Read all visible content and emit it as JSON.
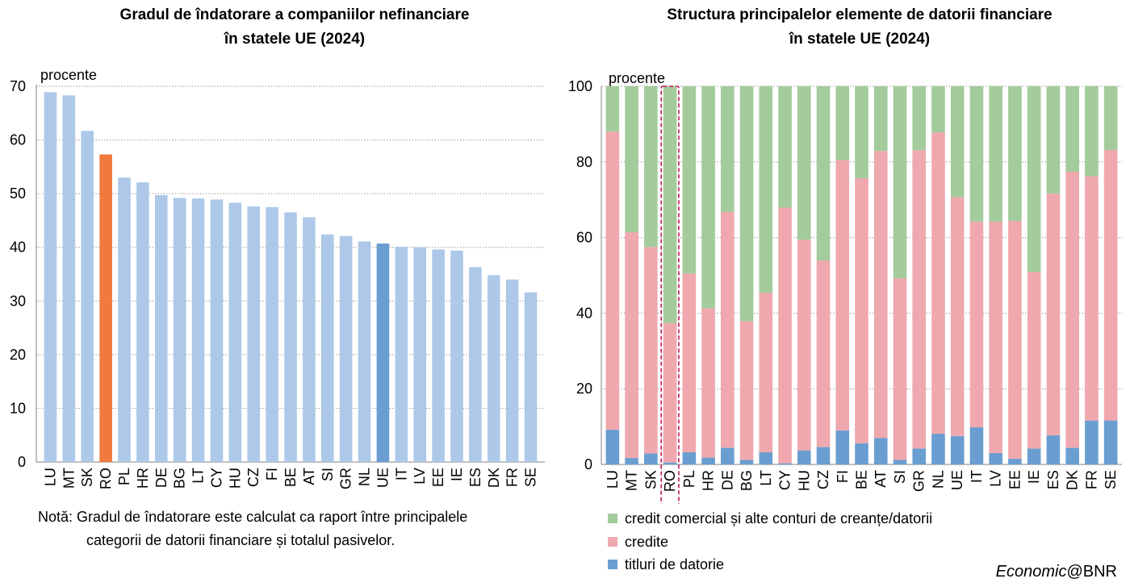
{
  "chart_data": [
    {
      "type": "bar",
      "title": "Gradul de îndatorare a companiilor nefinanciare\nîn statele UE (2024)",
      "title_lines": [
        "Gradul de îndatorare a companiilor nefinanciare",
        "în statele UE (2024)"
      ],
      "unit_label": "procente",
      "categories": [
        "LU",
        "MT",
        "SK",
        "RO",
        "PL",
        "HR",
        "DE",
        "BG",
        "LT",
        "CY",
        "HU",
        "CZ",
        "FI",
        "BE",
        "AT",
        "SI",
        "GR",
        "NL",
        "UE",
        "IT",
        "LV",
        "EE",
        "IE",
        "ES",
        "DK",
        "FR",
        "SE"
      ],
      "values": [
        68.9,
        68.3,
        61.7,
        57.3,
        53.0,
        52.1,
        49.7,
        49.2,
        49.1,
        48.9,
        48.3,
        47.6,
        47.5,
        46.5,
        45.6,
        42.4,
        42.1,
        41.1,
        40.7,
        40.1,
        40.0,
        39.6,
        39.4,
        36.3,
        34.8,
        34.0,
        31.6
      ],
      "highlight": {
        "RO": "#F07A3C",
        "UE": "#6A9ED1"
      },
      "bar_color": "#ADC8E8",
      "ylim": [
        0,
        70
      ],
      "yticks": [
        0,
        10,
        20,
        30,
        40,
        50,
        60,
        70
      ],
      "grid": true
    },
    {
      "type": "bar",
      "stacked": true,
      "title": "Structura principalelor elemente de datorii financiare\nîn statele UE (2024)",
      "title_lines": [
        "Structura principalelor elemente de datorii financiare",
        "în statele UE (2024)"
      ],
      "unit_label": "procente",
      "categories": [
        "LU",
        "MT",
        "SK",
        "RO",
        "PL",
        "HR",
        "DE",
        "BG",
        "LT",
        "CY",
        "HU",
        "CZ",
        "FI",
        "BE",
        "AT",
        "SI",
        "GR",
        "NL",
        "UE",
        "IT",
        "LV",
        "EE",
        "IE",
        "ES",
        "DK",
        "FR",
        "SE"
      ],
      "highlight_box": "RO",
      "series": [
        {
          "name": "titluri de datorie",
          "color": "#6A9ED1",
          "values": [
            9.2,
            1.7,
            2.9,
            0.5,
            3.2,
            1.8,
            4.4,
            1.2,
            3.2,
            0.3,
            3.7,
            4.6,
            9.0,
            5.6,
            7.0,
            1.2,
            4.2,
            8.1,
            7.5,
            9.8,
            3.0,
            1.5,
            4.2,
            7.7,
            4.4,
            11.6,
            11.6
          ]
        },
        {
          "name": "credite",
          "color": "#EFA8AE",
          "values": [
            78.8,
            59.7,
            54.6,
            36.9,
            47.3,
            39.5,
            62.4,
            36.7,
            42.2,
            67.6,
            55.7,
            49.3,
            71.5,
            70.1,
            75.9,
            48.0,
            78.9,
            79.7,
            63.2,
            54.4,
            61.2,
            62.9,
            46.7,
            63.9,
            73.0,
            64.6,
            71.6
          ]
        },
        {
          "name": "credit comercial și alte conturi de creanțe/datorii",
          "color": "#A3CB9B",
          "values": [
            12.0,
            38.6,
            42.5,
            62.6,
            49.5,
            58.7,
            33.2,
            62.1,
            54.6,
            32.1,
            40.6,
            46.1,
            19.5,
            24.3,
            17.1,
            50.8,
            16.9,
            12.2,
            29.3,
            35.8,
            35.8,
            35.6,
            49.1,
            28.4,
            22.6,
            23.8,
            16.8
          ]
        }
      ],
      "ylim": [
        0,
        100
      ],
      "yticks": [
        0,
        20,
        40,
        60,
        80,
        100
      ],
      "grid": true
    }
  ],
  "note": {
    "line1": "Notă: Gradul de îndatorare este calculat ca raport între principalele",
    "line2": "categorii de datorii financiare și totalul pasivelor."
  },
  "legend": [
    {
      "label": "credit comercial și alte conturi de creanțe/datorii",
      "color": "#A3CB9B"
    },
    {
      "label": "credite",
      "color": "#EFA8AE"
    },
    {
      "label": "titluri de datorie",
      "color": "#6A9ED1"
    }
  ],
  "credit": {
    "italic": "Economic",
    "rest": "@BNR"
  }
}
